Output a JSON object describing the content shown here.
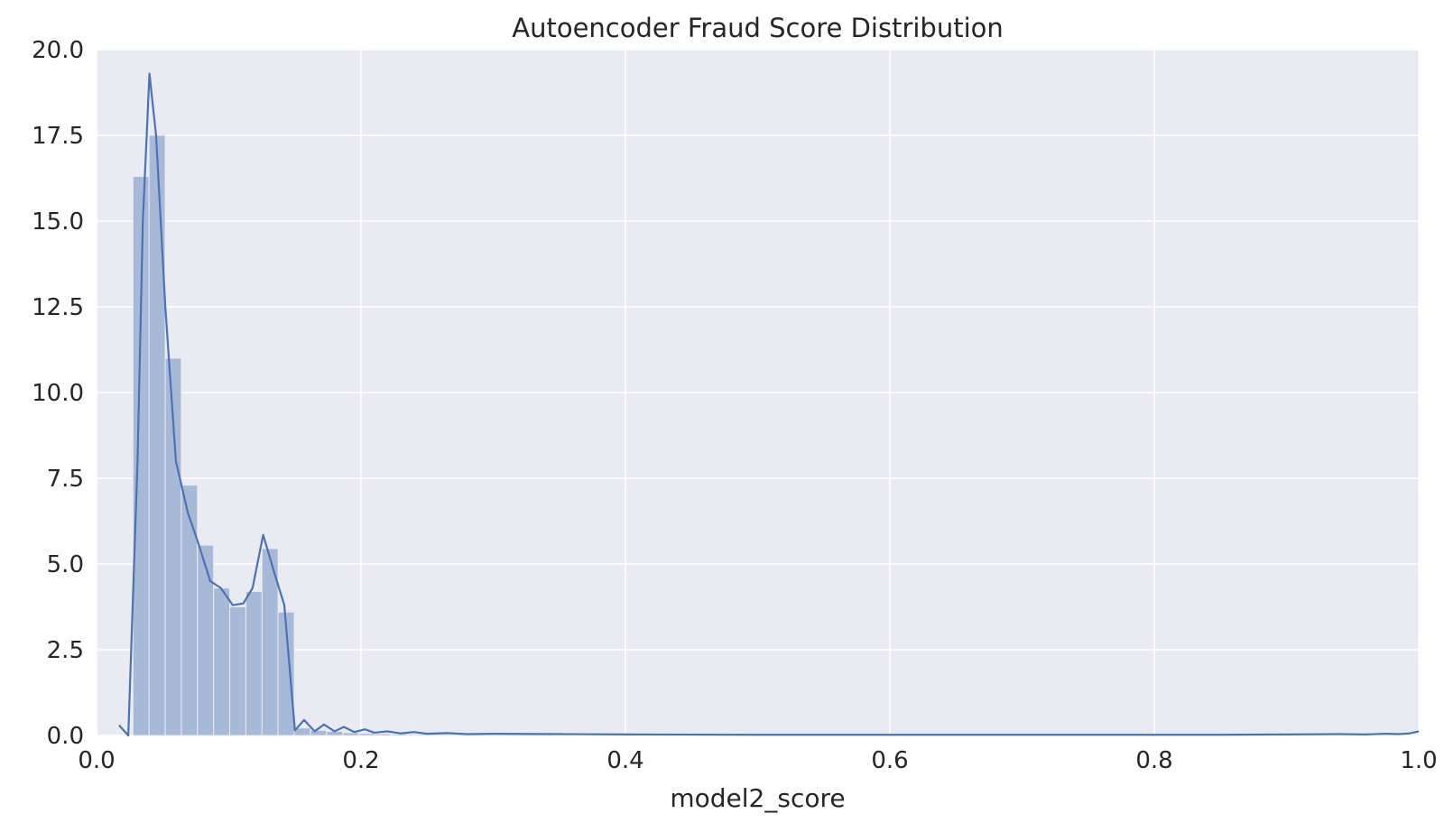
{
  "chart_data": {
    "type": "bar",
    "title": "Autoencoder Fraud Score Distribution",
    "xlabel": "model2_score",
    "ylabel": "",
    "xlim": [
      0.0,
      1.0
    ],
    "ylim": [
      0.0,
      20.0
    ],
    "x_ticks": [
      "0.0",
      "0.2",
      "0.4",
      "0.6",
      "0.8",
      "1.0"
    ],
    "y_ticks": [
      "0.0",
      "2.5",
      "5.0",
      "7.5",
      "10.0",
      "12.5",
      "15.0",
      "17.5",
      "20.0"
    ],
    "grid": true,
    "histogram": {
      "bin_start": 0.0275,
      "bin_width": 0.0122,
      "values": [
        16.3,
        17.5,
        11.0,
        7.3,
        5.55,
        4.3,
        3.75,
        4.2,
        5.45,
        3.6,
        0.22,
        0.15,
        0.12,
        0.08,
        0.06,
        0.05,
        0.04,
        0.03,
        0.03,
        0.02,
        0.02,
        0.02,
        0.01,
        0.01,
        0.01,
        0.01
      ]
    },
    "series": [
      {
        "type": "line",
        "points": [
          [
            0.017,
            0.3
          ],
          [
            0.024,
            0.0
          ],
          [
            0.031,
            8.0
          ],
          [
            0.035,
            15.0
          ],
          [
            0.04,
            19.3
          ],
          [
            0.045,
            17.5
          ],
          [
            0.052,
            12.5
          ],
          [
            0.06,
            8.0
          ],
          [
            0.069,
            6.5
          ],
          [
            0.077,
            5.6
          ],
          [
            0.086,
            4.5
          ],
          [
            0.094,
            4.3
          ],
          [
            0.103,
            3.8
          ],
          [
            0.111,
            3.85
          ],
          [
            0.118,
            4.3
          ],
          [
            0.126,
            5.85
          ],
          [
            0.134,
            4.8
          ],
          [
            0.142,
            3.8
          ],
          [
            0.15,
            0.15
          ],
          [
            0.157,
            0.45
          ],
          [
            0.165,
            0.12
          ],
          [
            0.172,
            0.32
          ],
          [
            0.18,
            0.12
          ],
          [
            0.187,
            0.25
          ],
          [
            0.195,
            0.1
          ],
          [
            0.203,
            0.18
          ],
          [
            0.21,
            0.08
          ],
          [
            0.22,
            0.12
          ],
          [
            0.23,
            0.06
          ],
          [
            0.24,
            0.1
          ],
          [
            0.25,
            0.05
          ],
          [
            0.265,
            0.07
          ],
          [
            0.28,
            0.04
          ],
          [
            0.3,
            0.05
          ],
          [
            0.35,
            0.04
          ],
          [
            0.4,
            0.03
          ],
          [
            0.5,
            0.02
          ],
          [
            0.6,
            0.02
          ],
          [
            0.7,
            0.02
          ],
          [
            0.8,
            0.02
          ],
          [
            0.85,
            0.02
          ],
          [
            0.9,
            0.03
          ],
          [
            0.94,
            0.04
          ],
          [
            0.96,
            0.03
          ],
          [
            0.975,
            0.05
          ],
          [
            0.985,
            0.04
          ],
          [
            0.993,
            0.06
          ],
          [
            1.0,
            0.12
          ]
        ]
      }
    ],
    "colors": {
      "plot_background": "#EAEAF2",
      "grid": "#FFFFFF",
      "bar_fill": "#A8B9D8",
      "line": "#4C72B0",
      "text": "#262626"
    }
  }
}
